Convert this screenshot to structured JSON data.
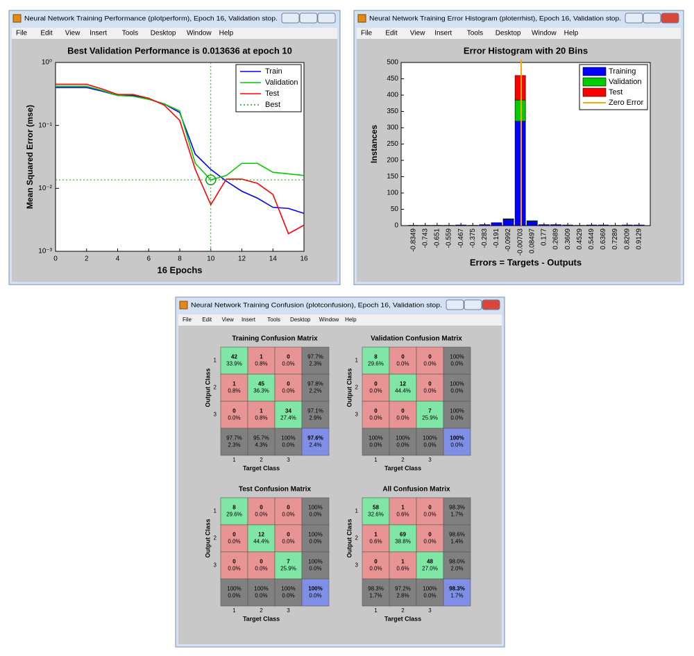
{
  "menu": [
    "File",
    "Edit",
    "View",
    "Insert",
    "Tools",
    "Desktop",
    "Window",
    "Help"
  ],
  "windows": [
    {
      "title": "Neural Network Training Performance (plotperform), Epoch 16, Validation stop."
    },
    {
      "title": "Neural Network Training Error Histogram (ploterrhist), Epoch 16, Validation stop."
    },
    {
      "title": "Neural Network Training Confusion (plotconfusion), Epoch 16, Validation stop."
    }
  ],
  "chart_data": [
    {
      "type": "line",
      "title": "Best Validation Performance is 0.013636 at epoch 10",
      "xlabel": "16 Epochs",
      "ylabel": "Mean Squared Error  (mse)",
      "log_y": true,
      "legend": "upper right",
      "x": [
        0,
        1,
        2,
        3,
        4,
        5,
        6,
        7,
        8,
        9,
        10,
        11,
        12,
        13,
        14,
        15,
        16
      ],
      "xlim": [
        0,
        16
      ],
      "xticks": [
        0,
        2,
        4,
        6,
        8,
        10,
        12,
        14,
        16
      ],
      "ylim": [
        0.001,
        1
      ],
      "yticks": [
        {
          "value": 0.001,
          "label": "10⁻³"
        },
        {
          "value": 0.01,
          "label": "10⁻²"
        },
        {
          "value": 0.1,
          "label": "10⁻¹"
        },
        {
          "value": 1,
          "label": "10⁰"
        }
      ],
      "series": [
        {
          "name": "Train",
          "color": "#0000ff",
          "values": [
            0.4,
            0.4,
            0.4,
            0.35,
            0.3,
            0.3,
            0.26,
            0.22,
            0.16,
            0.035,
            0.02,
            0.013,
            0.009,
            0.007,
            0.005,
            0.0048,
            0.004
          ]
        },
        {
          "name": "Validation",
          "color": "#00cc00",
          "values": [
            0.42,
            0.42,
            0.42,
            0.36,
            0.3,
            0.29,
            0.26,
            0.22,
            0.17,
            0.025,
            0.013636,
            0.016,
            0.025,
            0.025,
            0.018,
            0.017,
            0.016
          ]
        },
        {
          "name": "Test",
          "color": "#ff0000",
          "values": [
            0.45,
            0.45,
            0.45,
            0.38,
            0.31,
            0.31,
            0.27,
            0.21,
            0.12,
            0.02,
            0.0055,
            0.014,
            0.014,
            0.012,
            0.008,
            0.0019,
            0.0026
          ]
        }
      ],
      "best": {
        "name": "Best",
        "color": "#00aa00",
        "epoch": 10,
        "value": 0.013636
      }
    },
    {
      "type": "histogram",
      "title": "Error Histogram with 20 Bins",
      "xlabel": "Errors = Targets - Outputs",
      "ylabel": "Instances",
      "legend": "upper right",
      "bins": [
        -0.8809,
        -0.789,
        -0.697,
        -0.605,
        -0.513,
        -0.421,
        -0.329,
        -0.237,
        -0.145,
        -0.0532,
        0.0388,
        0.1309,
        0.2229,
        0.3149,
        0.4069,
        0.4989,
        0.5909,
        0.6829,
        0.7749,
        0.8669,
        0.9589
      ],
      "xlim": [
        -0.93,
        1.0
      ],
      "xticks": [
        -0.8349,
        -0.743,
        -0.651,
        -0.559,
        -0.467,
        -0.375,
        -0.283,
        -0.191,
        -0.0992,
        -0.00703,
        0.08497,
        0.177,
        0.2689,
        0.3609,
        0.4529,
        0.5449,
        0.6369,
        0.7289,
        0.8209,
        0.9129
      ],
      "ylim": [
        0,
        500
      ],
      "yticks": [
        0,
        50,
        100,
        150,
        200,
        250,
        300,
        350,
        400,
        450,
        500
      ],
      "series": [
        {
          "name": "Training",
          "color": "#0000ff",
          "values": [
            1,
            1,
            1,
            1,
            2,
            1,
            3,
            9,
            18,
            320,
            13,
            3,
            3,
            2,
            1,
            2,
            2,
            1,
            2,
            2
          ]
        },
        {
          "name": "Validation",
          "color": "#00cc00",
          "values": [
            0,
            0,
            0,
            0,
            0,
            0,
            0,
            0,
            2,
            65,
            2,
            0,
            0,
            0,
            0,
            0,
            0,
            0,
            0,
            0
          ]
        },
        {
          "name": "Test",
          "color": "#ff0000",
          "values": [
            0,
            0,
            0,
            0,
            0,
            0,
            0,
            0,
            1,
            75,
            0,
            0,
            0,
            0,
            0,
            0,
            0,
            0,
            0,
            0
          ]
        }
      ],
      "zero_error": {
        "name": "Zero Error",
        "color": "#ffa500",
        "value": 0
      }
    },
    {
      "type": "confusion",
      "title": "Training Confusion Matrix",
      "xlabel": "Target Class",
      "ylabel": "Output Class",
      "class_labels": [
        "1",
        "2",
        "3"
      ],
      "counts": [
        [
          42,
          1,
          0
        ],
        [
          1,
          45,
          0
        ],
        [
          0,
          1,
          34
        ]
      ],
      "percents": [
        [
          "33.9%",
          "0.8%",
          "0.0%"
        ],
        [
          "0.8%",
          "36.3%",
          "0.0%"
        ],
        [
          "0.0%",
          "0.8%",
          "27.4%"
        ]
      ],
      "row_summary": [
        [
          "97.7%",
          "2.3%"
        ],
        [
          "97.8%",
          "2.2%"
        ],
        [
          "97.1%",
          "2.9%"
        ]
      ],
      "col_summary": [
        [
          "97.7%",
          "2.3%"
        ],
        [
          "95.7%",
          "4.3%"
        ],
        [
          "100%",
          "0.0%"
        ]
      ],
      "total": [
        "97.6%",
        "2.4%"
      ]
    },
    {
      "type": "confusion",
      "title": "Validation Confusion Matrix",
      "xlabel": "Target Class",
      "ylabel": "Output Class",
      "class_labels": [
        "1",
        "2",
        "3"
      ],
      "counts": [
        [
          8,
          0,
          0
        ],
        [
          0,
          12,
          0
        ],
        [
          0,
          0,
          7
        ]
      ],
      "percents": [
        [
          "29.6%",
          "0.0%",
          "0.0%"
        ],
        [
          "0.0%",
          "44.4%",
          "0.0%"
        ],
        [
          "0.0%",
          "0.0%",
          "25.9%"
        ]
      ],
      "row_summary": [
        [
          "100%",
          "0.0%"
        ],
        [
          "100%",
          "0.0%"
        ],
        [
          "100%",
          "0.0%"
        ]
      ],
      "col_summary": [
        [
          "100%",
          "0.0%"
        ],
        [
          "100%",
          "0.0%"
        ],
        [
          "100%",
          "0.0%"
        ]
      ],
      "total": [
        "100%",
        "0.0%"
      ]
    },
    {
      "type": "confusion",
      "title": "Test Confusion Matrix",
      "xlabel": "Target Class",
      "ylabel": "Output Class",
      "class_labels": [
        "1",
        "2",
        "3"
      ],
      "counts": [
        [
          8,
          0,
          0
        ],
        [
          0,
          12,
          0
        ],
        [
          0,
          0,
          7
        ]
      ],
      "percents": [
        [
          "29.6%",
          "0.0%",
          "0.0%"
        ],
        [
          "0.0%",
          "44.4%",
          "0.0%"
        ],
        [
          "0.0%",
          "0.0%",
          "25.9%"
        ]
      ],
      "row_summary": [
        [
          "100%",
          "0.0%"
        ],
        [
          "100%",
          "0.0%"
        ],
        [
          "100%",
          "0.0%"
        ]
      ],
      "col_summary": [
        [
          "100%",
          "0.0%"
        ],
        [
          "100%",
          "0.0%"
        ],
        [
          "100%",
          "0.0%"
        ]
      ],
      "total": [
        "100%",
        "0.0%"
      ]
    },
    {
      "type": "confusion",
      "title": "All Confusion Matrix",
      "xlabel": "Target Class",
      "ylabel": "Output Class",
      "class_labels": [
        "1",
        "2",
        "3"
      ],
      "counts": [
        [
          58,
          1,
          0
        ],
        [
          1,
          69,
          0
        ],
        [
          0,
          1,
          48
        ]
      ],
      "percents": [
        [
          "32.6%",
          "0.6%",
          "0.0%"
        ],
        [
          "0.6%",
          "38.8%",
          "0.0%"
        ],
        [
          "0.0%",
          "0.6%",
          "27.0%"
        ]
      ],
      "row_summary": [
        [
          "98.3%",
          "1.7%"
        ],
        [
          "98.6%",
          "1.4%"
        ],
        [
          "98.0%",
          "2.0%"
        ]
      ],
      "col_summary": [
        [
          "98.3%",
          "1.7%"
        ],
        [
          "97.2%",
          "2.8%"
        ],
        [
          "100%",
          "0.0%"
        ]
      ],
      "total": [
        "98.3%",
        "1.7%"
      ]
    }
  ]
}
